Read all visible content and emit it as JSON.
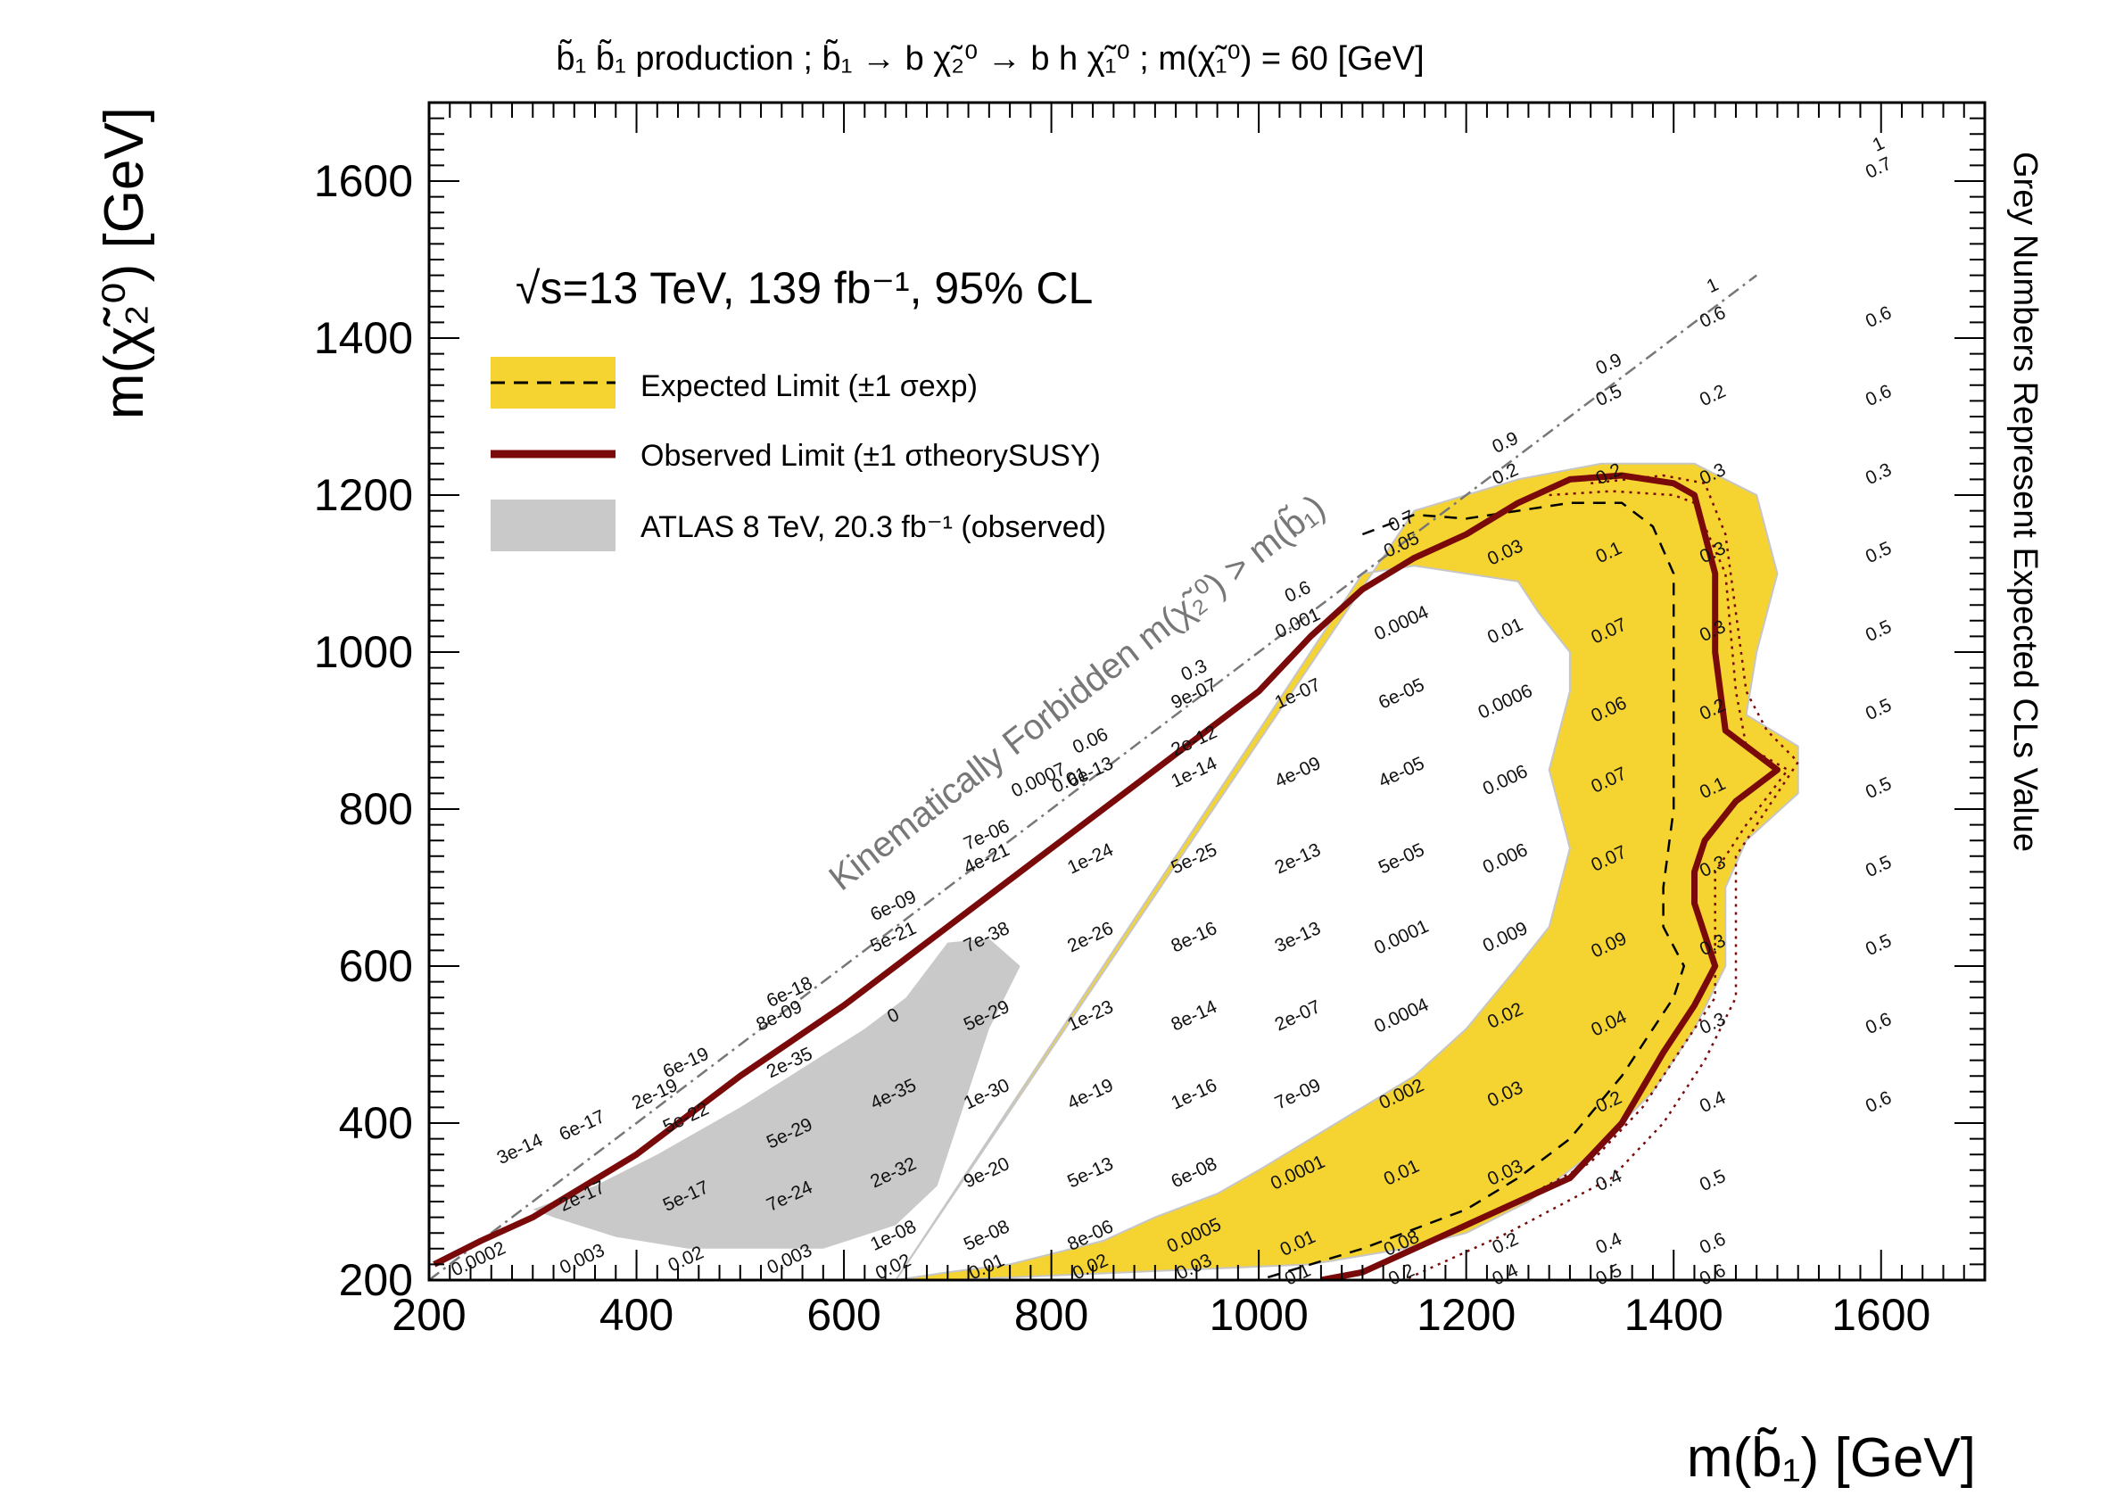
{
  "chart_data": {
    "type": "contour",
    "title": "b̃₁ b̃₁ production ; b̃₁ → b χ̃₂⁰ → b h χ̃₁⁰ ;  m(χ̃₁⁰) = 60 [GeV]",
    "xlabel": "m(b̃₁) [GeV]",
    "ylabel": "m(χ̃₂⁰) [GeV]",
    "zlabel": "Grey Numbers Represent Expected CLs Value",
    "xlim": [
      200,
      1700
    ],
    "ylim": [
      200,
      1700
    ],
    "x_ticks": [
      200,
      400,
      600,
      800,
      1000,
      1200,
      1400,
      1600
    ],
    "y_ticks": [
      200,
      400,
      600,
      800,
      1000,
      1200,
      1400,
      1600
    ],
    "energy_label": "√s=13 TeV, 139 fb⁻¹, 95% CL",
    "forbidden_label": "Kinematically Forbidden m(χ̃₂⁰) > m(b̃₁)",
    "legend": [
      {
        "label": "Expected Limit (±1 σexp)",
        "color": "#f5d431"
      },
      {
        "label": "Observed Limit (±1 σtheorySUSY)",
        "color": "#7a0a0a"
      },
      {
        "label": "ATLAS 8 TeV, 20.3 fb⁻¹ (observed)",
        "color": "#c9c9c9"
      }
    ],
    "colors": {
      "band": "#f5d431",
      "observed": "#7a0a0a",
      "atlas8": "#c9c9c9",
      "diag": "#777777",
      "cls_text": "#111111",
      "band_edge": "#c6c6c6"
    },
    "forbidden_diag": [
      [
        200,
        200
      ],
      [
        1700,
        1700
      ]
    ],
    "observed": [
      [
        205,
        220
      ],
      [
        250,
        250
      ],
      [
        300,
        280
      ],
      [
        400,
        360
      ],
      [
        500,
        460
      ],
      [
        600,
        550
      ],
      [
        700,
        650
      ],
      [
        800,
        750
      ],
      [
        900,
        850
      ],
      [
        1000,
        950
      ],
      [
        1050,
        1020
      ],
      [
        1100,
        1080
      ],
      [
        1150,
        1120
      ],
      [
        1200,
        1150
      ],
      [
        1250,
        1190
      ],
      [
        1300,
        1220
      ],
      [
        1350,
        1225
      ],
      [
        1400,
        1215
      ],
      [
        1420,
        1200
      ],
      [
        1440,
        1100
      ],
      [
        1440,
        1000
      ],
      [
        1450,
        900
      ],
      [
        1500,
        850
      ],
      [
        1460,
        810
      ],
      [
        1430,
        760
      ],
      [
        1420,
        720
      ],
      [
        1420,
        680
      ],
      [
        1440,
        600
      ],
      [
        1420,
        550
      ],
      [
        1390,
        490
      ],
      [
        1350,
        400
      ],
      [
        1300,
        330
      ],
      [
        1200,
        270
      ],
      [
        1100,
        210
      ],
      [
        1060,
        180
      ]
    ],
    "observed_band": [
      [
        [
          1280,
          1200
        ],
        [
          1340,
          1205
        ],
        [
          1400,
          1200
        ],
        [
          1420,
          1190
        ],
        [
          1450,
          1100
        ],
        [
          1460,
          950
        ],
        [
          1470,
          880
        ],
        [
          1510,
          850
        ],
        [
          1470,
          780
        ],
        [
          1440,
          720
        ],
        [
          1440,
          650
        ],
        [
          1440,
          560
        ],
        [
          1410,
          500
        ],
        [
          1370,
          420
        ],
        [
          1320,
          350
        ],
        [
          1220,
          280
        ],
        [
          1120,
          220
        ]
      ],
      [
        [
          1320,
          1215
        ],
        [
          1390,
          1225
        ],
        [
          1430,
          1215
        ],
        [
          1450,
          1150
        ],
        [
          1460,
          1050
        ],
        [
          1470,
          950
        ],
        [
          1490,
          900
        ],
        [
          1520,
          860
        ],
        [
          1490,
          800
        ],
        [
          1460,
          740
        ],
        [
          1460,
          650
        ],
        [
          1460,
          560
        ],
        [
          1430,
          480
        ],
        [
          1390,
          400
        ],
        [
          1340,
          330
        ],
        [
          1240,
          260
        ],
        [
          1140,
          200
        ]
      ]
    ],
    "expected": [
      [
        1100,
        1150
      ],
      [
        1150,
        1175
      ],
      [
        1200,
        1170
      ],
      [
        1250,
        1180
      ],
      [
        1300,
        1190
      ],
      [
        1350,
        1190
      ],
      [
        1380,
        1160
      ],
      [
        1400,
        1100
      ],
      [
        1400,
        1000
      ],
      [
        1400,
        900
      ],
      [
        1400,
        800
      ],
      [
        1390,
        700
      ],
      [
        1390,
        650
      ],
      [
        1410,
        600
      ],
      [
        1400,
        560
      ],
      [
        1350,
        460
      ],
      [
        1300,
        380
      ],
      [
        1250,
        330
      ],
      [
        1200,
        290
      ],
      [
        1100,
        240
      ],
      [
        1050,
        220
      ],
      [
        1000,
        200
      ]
    ],
    "expected_band_outer": [
      [
        1150,
        1180
      ],
      [
        1250,
        1220
      ],
      [
        1330,
        1240
      ],
      [
        1420,
        1240
      ],
      [
        1480,
        1200
      ],
      [
        1500,
        1100
      ],
      [
        1480,
        1000
      ],
      [
        1470,
        920
      ],
      [
        1520,
        880
      ],
      [
        1520,
        820
      ],
      [
        1470,
        760
      ],
      [
        1450,
        700
      ],
      [
        1450,
        600
      ],
      [
        1420,
        520
      ],
      [
        1380,
        440
      ],
      [
        1320,
        360
      ],
      [
        1260,
        300
      ],
      [
        1200,
        260
      ],
      [
        1140,
        240
      ],
      [
        1050,
        220
      ],
      [
        700,
        200
      ],
      [
        860,
        200
      ],
      [
        700,
        200
      ],
      [
        650,
        200
      ]
    ],
    "expected_band_inner": [
      [
        1100,
        1100
      ],
      [
        1150,
        1110
      ],
      [
        1200,
        1100
      ],
      [
        1250,
        1090
      ],
      [
        1270,
        1050
      ],
      [
        1300,
        1000
      ],
      [
        1300,
        950
      ],
      [
        1290,
        900
      ],
      [
        1280,
        850
      ],
      [
        1290,
        800
      ],
      [
        1300,
        750
      ],
      [
        1290,
        700
      ],
      [
        1280,
        650
      ],
      [
        1250,
        600
      ],
      [
        1200,
        520
      ],
      [
        1150,
        460
      ],
      [
        1100,
        420
      ],
      [
        1050,
        380
      ],
      [
        1000,
        340
      ],
      [
        960,
        310
      ],
      [
        900,
        280
      ],
      [
        850,
        250
      ],
      [
        760,
        220
      ],
      [
        700,
        210
      ],
      [
        650,
        200
      ]
    ],
    "atlas8_region": [
      [
        300,
        290
      ],
      [
        360,
        320
      ],
      [
        420,
        360
      ],
      [
        500,
        420
      ],
      [
        560,
        470
      ],
      [
        620,
        520
      ],
      [
        660,
        560
      ],
      [
        700,
        630
      ],
      [
        740,
        635
      ],
      [
        770,
        600
      ],
      [
        740,
        520
      ],
      [
        720,
        440
      ],
      [
        700,
        360
      ],
      [
        690,
        320
      ],
      [
        650,
        270
      ],
      [
        580,
        240
      ],
      [
        450,
        240
      ],
      [
        380,
        255
      ],
      [
        320,
        280
      ]
    ],
    "cls_points": [
      {
        "x": 1600,
        "y": 1640,
        "v": "1"
      },
      {
        "x": 1600,
        "y": 1610,
        "v": "0.7"
      },
      {
        "x": 1440,
        "y": 1460,
        "v": "1"
      },
      {
        "x": 1440,
        "y": 1420,
        "v": "0.6"
      },
      {
        "x": 1600,
        "y": 1420,
        "v": "0.6"
      },
      {
        "x": 1340,
        "y": 1360,
        "v": "0.9"
      },
      {
        "x": 1340,
        "y": 1320,
        "v": "0.5"
      },
      {
        "x": 1440,
        "y": 1320,
        "v": "0.2"
      },
      {
        "x": 1600,
        "y": 1320,
        "v": "0.6"
      },
      {
        "x": 1240,
        "y": 1260,
        "v": "0.9"
      },
      {
        "x": 1240,
        "y": 1220,
        "v": "0.2"
      },
      {
        "x": 1340,
        "y": 1220,
        "v": "0.2"
      },
      {
        "x": 1440,
        "y": 1220,
        "v": "0.3"
      },
      {
        "x": 1600,
        "y": 1220,
        "v": "0.3"
      },
      {
        "x": 1140,
        "y": 1160,
        "v": "0.7"
      },
      {
        "x": 1140,
        "y": 1130,
        "v": "0.05"
      },
      {
        "x": 1240,
        "y": 1120,
        "v": "0.03"
      },
      {
        "x": 1340,
        "y": 1120,
        "v": "0.1"
      },
      {
        "x": 1440,
        "y": 1120,
        "v": "0.3"
      },
      {
        "x": 1600,
        "y": 1120,
        "v": "0.5"
      },
      {
        "x": 1040,
        "y": 1070,
        "v": "0.6"
      },
      {
        "x": 1040,
        "y": 1030,
        "v": "0.001"
      },
      {
        "x": 1140,
        "y": 1030,
        "v": "0.0004"
      },
      {
        "x": 1240,
        "y": 1020,
        "v": "0.01"
      },
      {
        "x": 1340,
        "y": 1020,
        "v": "0.07"
      },
      {
        "x": 1440,
        "y": 1020,
        "v": "0.3"
      },
      {
        "x": 1600,
        "y": 1020,
        "v": "0.5"
      },
      {
        "x": 940,
        "y": 970,
        "v": "0.3"
      },
      {
        "x": 940,
        "y": 940,
        "v": "9e-07"
      },
      {
        "x": 1040,
        "y": 940,
        "v": "1e-07"
      },
      {
        "x": 1140,
        "y": 940,
        "v": "6e-05"
      },
      {
        "x": 1240,
        "y": 930,
        "v": "0.0006"
      },
      {
        "x": 1340,
        "y": 920,
        "v": "0.06"
      },
      {
        "x": 1440,
        "y": 920,
        "v": "0.2"
      },
      {
        "x": 1600,
        "y": 920,
        "v": "0.5"
      },
      {
        "x": 840,
        "y": 880,
        "v": "0.06"
      },
      {
        "x": 940,
        "y": 880,
        "v": "2e-12"
      },
      {
        "x": 940,
        "y": 840,
        "v": "1e-14"
      },
      {
        "x": 840,
        "y": 840,
        "v": "6e-13"
      },
      {
        "x": 1040,
        "y": 840,
        "v": "4e-09"
      },
      {
        "x": 1140,
        "y": 840,
        "v": "4e-05"
      },
      {
        "x": 1240,
        "y": 830,
        "v": "0.006"
      },
      {
        "x": 1340,
        "y": 830,
        "v": "0.07"
      },
      {
        "x": 1440,
        "y": 820,
        "v": "0.1"
      },
      {
        "x": 1600,
        "y": 820,
        "v": "0.5"
      },
      {
        "x": 790,
        "y": 830,
        "v": "0.0007"
      },
      {
        "x": 820,
        "y": 830,
        "v": "0.01"
      },
      {
        "x": 740,
        "y": 760,
        "v": "7e-06"
      },
      {
        "x": 740,
        "y": 730,
        "v": "4e-21"
      },
      {
        "x": 840,
        "y": 730,
        "v": "1e-24"
      },
      {
        "x": 940,
        "y": 730,
        "v": "5e-25"
      },
      {
        "x": 1040,
        "y": 730,
        "v": "2e-13"
      },
      {
        "x": 1140,
        "y": 730,
        "v": "5e-05"
      },
      {
        "x": 1240,
        "y": 730,
        "v": "0.006"
      },
      {
        "x": 1340,
        "y": 730,
        "v": "0.07"
      },
      {
        "x": 1440,
        "y": 720,
        "v": "0.3"
      },
      {
        "x": 1600,
        "y": 720,
        "v": "0.5"
      },
      {
        "x": 650,
        "y": 670,
        "v": "6e-09"
      },
      {
        "x": 650,
        "y": 630,
        "v": "5e-21"
      },
      {
        "x": 740,
        "y": 630,
        "v": "7e-38"
      },
      {
        "x": 840,
        "y": 630,
        "v": "2e-26"
      },
      {
        "x": 940,
        "y": 630,
        "v": "8e-16"
      },
      {
        "x": 1040,
        "y": 630,
        "v": "3e-13"
      },
      {
        "x": 1140,
        "y": 630,
        "v": "0.0001"
      },
      {
        "x": 1240,
        "y": 630,
        "v": "0.009"
      },
      {
        "x": 1340,
        "y": 620,
        "v": "0.09"
      },
      {
        "x": 1440,
        "y": 620,
        "v": "0.3"
      },
      {
        "x": 1600,
        "y": 620,
        "v": "0.5"
      },
      {
        "x": 550,
        "y": 560,
        "v": "6e-18"
      },
      {
        "x": 540,
        "y": 530,
        "v": "8e-09"
      },
      {
        "x": 650,
        "y": 530,
        "v": "0"
      },
      {
        "x": 740,
        "y": 530,
        "v": "5e-29"
      },
      {
        "x": 840,
        "y": 530,
        "v": "1e-23"
      },
      {
        "x": 940,
        "y": 530,
        "v": "8e-14"
      },
      {
        "x": 1040,
        "y": 530,
        "v": "2e-07"
      },
      {
        "x": 1140,
        "y": 530,
        "v": "0.0004"
      },
      {
        "x": 1240,
        "y": 530,
        "v": "0.02"
      },
      {
        "x": 1340,
        "y": 520,
        "v": "0.04"
      },
      {
        "x": 1440,
        "y": 520,
        "v": "0.3"
      },
      {
        "x": 1600,
        "y": 520,
        "v": "0.6"
      },
      {
        "x": 450,
        "y": 470,
        "v": "6e-19"
      },
      {
        "x": 420,
        "y": 430,
        "v": "2e-19"
      },
      {
        "x": 550,
        "y": 470,
        "v": "2e-35"
      },
      {
        "x": 650,
        "y": 430,
        "v": "4e-35"
      },
      {
        "x": 740,
        "y": 430,
        "v": "1e-30"
      },
      {
        "x": 840,
        "y": 430,
        "v": "4e-19"
      },
      {
        "x": 940,
        "y": 430,
        "v": "1e-16"
      },
      {
        "x": 1040,
        "y": 430,
        "v": "7e-09"
      },
      {
        "x": 1140,
        "y": 430,
        "v": "0.002"
      },
      {
        "x": 1240,
        "y": 430,
        "v": "0.03"
      },
      {
        "x": 1340,
        "y": 420,
        "v": "0.2"
      },
      {
        "x": 1440,
        "y": 420,
        "v": "0.4"
      },
      {
        "x": 1600,
        "y": 420,
        "v": "0.6"
      },
      {
        "x": 350,
        "y": 390,
        "v": "6e-17"
      },
      {
        "x": 290,
        "y": 360,
        "v": "3e-14"
      },
      {
        "x": 450,
        "y": 400,
        "v": "5e-22"
      },
      {
        "x": 550,
        "y": 380,
        "v": "5e-29"
      },
      {
        "x": 650,
        "y": 330,
        "v": "2e-32"
      },
      {
        "x": 740,
        "y": 330,
        "v": "9e-20"
      },
      {
        "x": 840,
        "y": 330,
        "v": "5e-13"
      },
      {
        "x": 940,
        "y": 330,
        "v": "6e-08"
      },
      {
        "x": 1040,
        "y": 330,
        "v": "0.0001"
      },
      {
        "x": 1140,
        "y": 330,
        "v": "0.01"
      },
      {
        "x": 1240,
        "y": 330,
        "v": "0.03"
      },
      {
        "x": 1340,
        "y": 320,
        "v": "0.4"
      },
      {
        "x": 1440,
        "y": 320,
        "v": "0.5"
      },
      {
        "x": 350,
        "y": 300,
        "v": "2e-17"
      },
      {
        "x": 450,
        "y": 300,
        "v": "5e-17"
      },
      {
        "x": 550,
        "y": 300,
        "v": "7e-24"
      },
      {
        "x": 650,
        "y": 250,
        "v": "1e-08"
      },
      {
        "x": 740,
        "y": 250,
        "v": "5e-08"
      },
      {
        "x": 840,
        "y": 250,
        "v": "8e-06"
      },
      {
        "x": 940,
        "y": 250,
        "v": "0.0005"
      },
      {
        "x": 1040,
        "y": 240,
        "v": "0.01"
      },
      {
        "x": 1140,
        "y": 240,
        "v": "0.08"
      },
      {
        "x": 1240,
        "y": 240,
        "v": "0.2"
      },
      {
        "x": 1340,
        "y": 240,
        "v": "0.4"
      },
      {
        "x": 1440,
        "y": 240,
        "v": "0.6"
      },
      {
        "x": 250,
        "y": 220,
        "v": "0.0002"
      },
      {
        "x": 350,
        "y": 220,
        "v": "0.003"
      },
      {
        "x": 450,
        "y": 220,
        "v": "0.02"
      },
      {
        "x": 550,
        "y": 220,
        "v": "0.003"
      },
      {
        "x": 650,
        "y": 210,
        "v": "0.02"
      },
      {
        "x": 740,
        "y": 210,
        "v": "0.01"
      },
      {
        "x": 840,
        "y": 210,
        "v": "0.02"
      },
      {
        "x": 940,
        "y": 210,
        "v": "0.03"
      },
      {
        "x": 1040,
        "y": 200,
        "v": "0.1"
      },
      {
        "x": 1140,
        "y": 200,
        "v": "0.2"
      },
      {
        "x": 1240,
        "y": 200,
        "v": "0.4"
      },
      {
        "x": 1340,
        "y": 200,
        "v": "0.5"
      },
      {
        "x": 1440,
        "y": 200,
        "v": "0.6"
      }
    ]
  }
}
